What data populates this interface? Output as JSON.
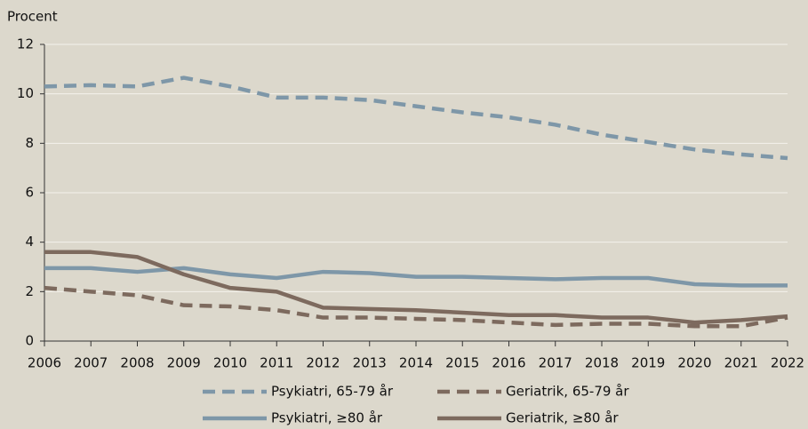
{
  "chart_data": {
    "type": "line",
    "y_label": "Procent",
    "x": [
      2006,
      2007,
      2008,
      2009,
      2010,
      2011,
      2012,
      2013,
      2014,
      2015,
      2016,
      2017,
      2018,
      2019,
      2020,
      2021,
      2022
    ],
    "xlim": [
      2006,
      2022
    ],
    "xticks": [
      2006,
      2007,
      2008,
      2009,
      2010,
      2011,
      2012,
      2013,
      2014,
      2015,
      2016,
      2017,
      2018,
      2019,
      2020,
      2021,
      2022
    ],
    "ylim": [
      0,
      12
    ],
    "yticks": [
      0,
      2,
      4,
      6,
      8,
      10,
      12
    ],
    "grid": true,
    "legend": "bottom",
    "series": [
      {
        "name": "Psykiatri, 65-79 år",
        "color": "#7e97a8",
        "dashed": true,
        "values": [
          10.3,
          10.35,
          10.3,
          10.65,
          10.3,
          9.85,
          9.85,
          9.75,
          9.5,
          9.25,
          9.05,
          8.75,
          8.35,
          8.05,
          7.75,
          7.55,
          7.4
        ]
      },
      {
        "name": "Geriatrik, 65-79 år",
        "color": "#7d6a5e",
        "dashed": true,
        "values": [
          2.15,
          2.0,
          1.85,
          1.45,
          1.4,
          1.25,
          0.95,
          0.95,
          0.9,
          0.85,
          0.75,
          0.65,
          0.7,
          0.7,
          0.6,
          0.6,
          0.95
        ]
      },
      {
        "name": "Psykiatri, ≥80 år",
        "color": "#7e97a8",
        "dashed": false,
        "values": [
          2.95,
          2.95,
          2.8,
          2.95,
          2.7,
          2.55,
          2.8,
          2.75,
          2.6,
          2.6,
          2.55,
          2.5,
          2.55,
          2.55,
          2.3,
          2.25,
          2.25
        ]
      },
      {
        "name": "Geriatrik, ≥80 år",
        "color": "#7d6a5e",
        "dashed": false,
        "values": [
          3.6,
          3.6,
          3.4,
          2.7,
          2.15,
          2.0,
          1.35,
          1.3,
          1.25,
          1.15,
          1.05,
          1.05,
          0.95,
          0.95,
          0.75,
          0.85,
          1.0
        ]
      }
    ]
  }
}
